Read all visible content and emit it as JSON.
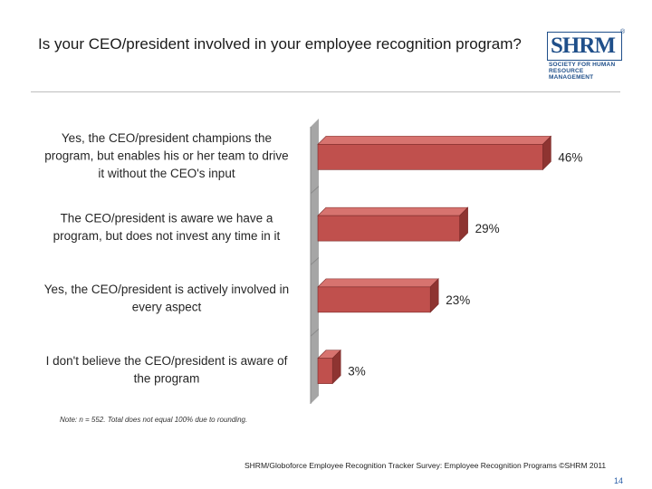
{
  "slide": {
    "title": "Is your CEO/president involved in your employee recognition program?",
    "note": "Note: n = 552. Total does not equal 100% due to rounding.",
    "source": "SHRM/Globoforce Employee Recognition Tracker Survey: Employee Recognition Programs ©SHRM 2011",
    "page_number": "14"
  },
  "logo": {
    "text": "SHRM",
    "registered": "®",
    "subtitle_line1": "Society for Human",
    "subtitle_line2": "Resource Management"
  },
  "colors": {
    "bar_front": "#c0504d",
    "bar_top": "#d7736f",
    "bar_side": "#8e3431",
    "wall": "#a6a6a6",
    "brand": "#1f4f8a",
    "page_number": "#2a5ea8"
  },
  "chart_data": {
    "type": "bar",
    "orientation": "horizontal",
    "style": "3d",
    "title": "Is your CEO/president involved in your employee recognition program?",
    "xlim": [
      0,
      50
    ],
    "grid": false,
    "categories": [
      [
        "Yes, the CEO/president champions the",
        "program, but enables his or her team to drive",
        "it without the CEO's input"
      ],
      [
        "The CEO/president is aware we have a",
        "program, but does not invest any time in it"
      ],
      [
        "Yes, the CEO/president is actively involved in",
        "every aspect"
      ],
      [
        "I don't believe the CEO/president is aware of",
        "the program"
      ]
    ],
    "values": [
      46,
      29,
      23,
      3
    ],
    "value_labels": [
      "46%",
      "29%",
      "23%",
      "3%"
    ]
  }
}
